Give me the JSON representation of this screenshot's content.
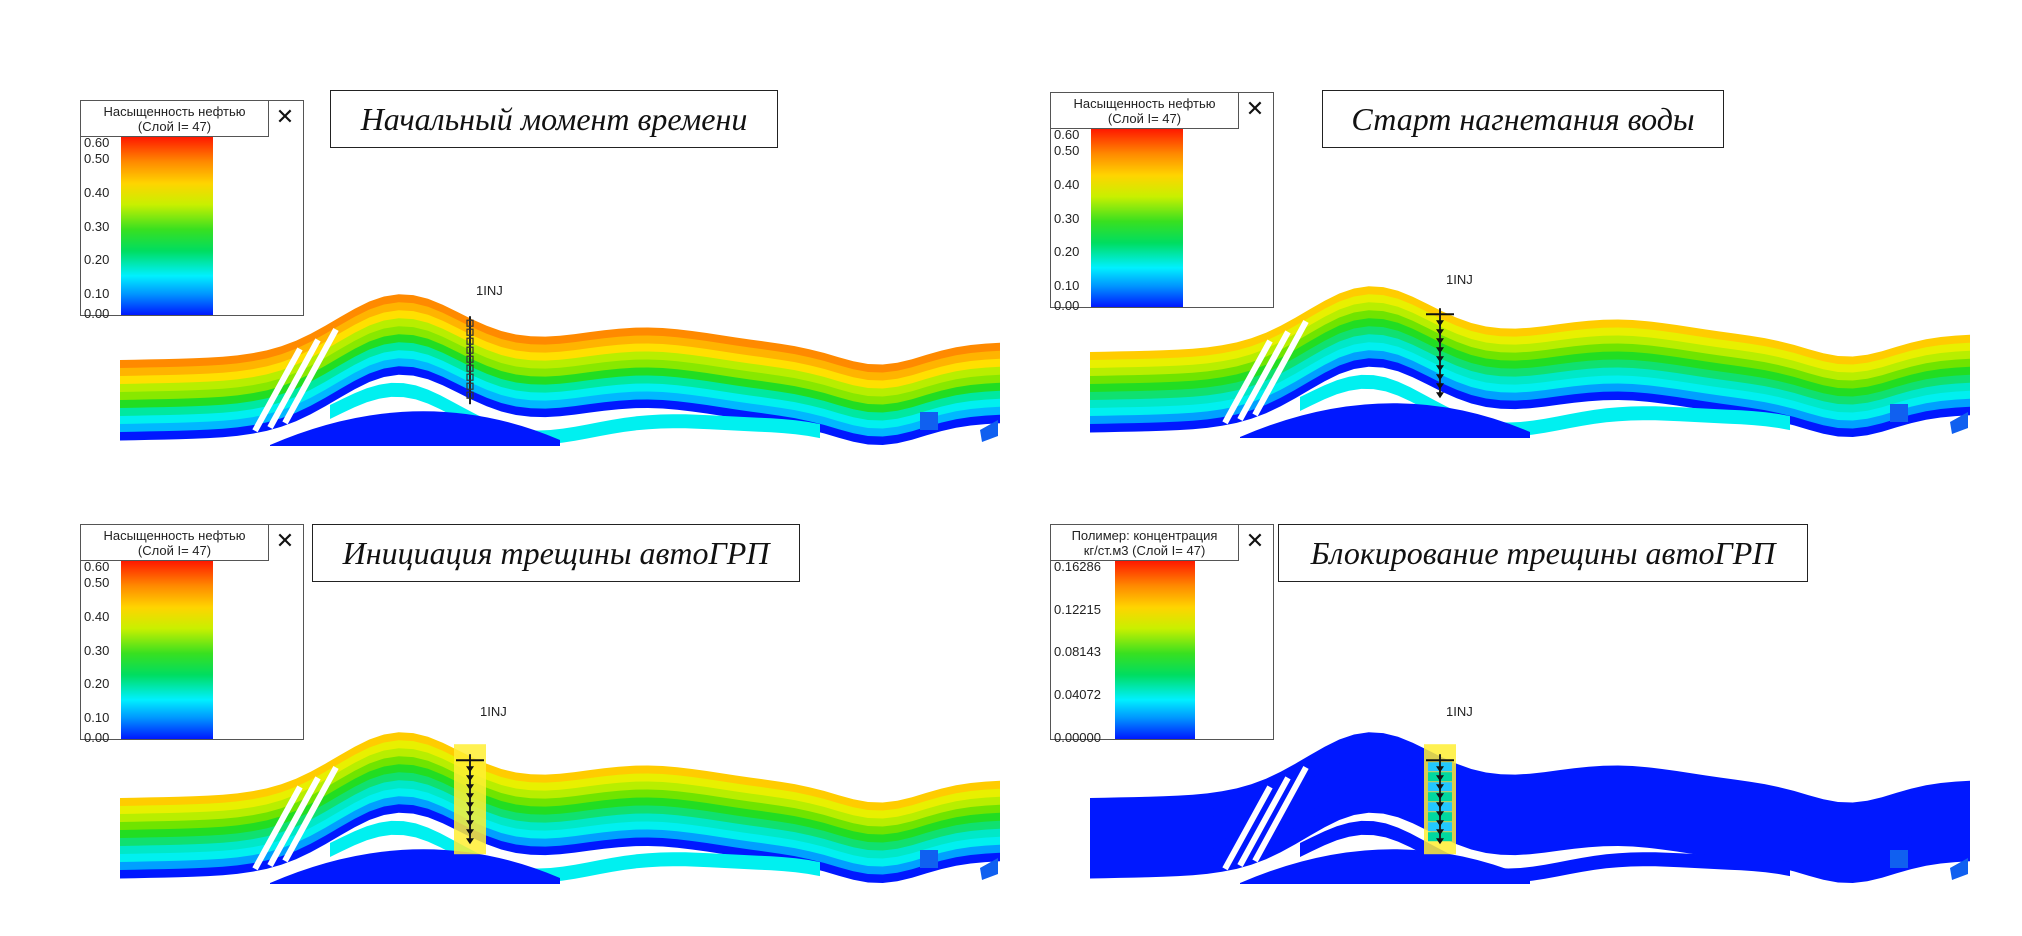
{
  "panels": [
    {
      "id": "p1",
      "caption": "Начальный момент времени",
      "legend": {
        "title": [
          "Насыщенность нефтью",
          "(Слой I= 47)"
        ],
        "ticks": [
          "0.60",
          "0.50",
          "0.40",
          "0.30",
          "0.20",
          "0.10",
          "0.00"
        ]
      },
      "well": "1INJ",
      "state": "initial"
    },
    {
      "id": "p2",
      "caption": "Старт нагнетания воды",
      "legend": {
        "title": [
          "Насыщенность нефтью",
          "(Слой I= 47)"
        ],
        "ticks": [
          "0.60",
          "0.50",
          "0.40",
          "0.30",
          "0.20",
          "0.10",
          "0.00"
        ]
      },
      "well": "1INJ",
      "state": "injection"
    },
    {
      "id": "p3",
      "caption": "Инициация трещины автоГРП",
      "legend": {
        "title": [
          "Насыщенность нефтью",
          "(Слой I= 47)"
        ],
        "ticks": [
          "0.60",
          "0.50",
          "0.40",
          "0.30",
          "0.20",
          "0.10",
          "0.00"
        ]
      },
      "well": "1INJ",
      "state": "fracture"
    },
    {
      "id": "p4",
      "caption": "Блокирование трещины автоГРП",
      "legend": {
        "title": [
          "Полимер: концентрация",
          "кг/ст.м3 (Слой I= 47)"
        ],
        "ticks": [
          "0.16286",
          "0.12215",
          "0.08143",
          "0.04072",
          "0.00000"
        ]
      },
      "well": "1INJ",
      "state": "polymer"
    }
  ],
  "colors": {
    "top": "#ff8a00",
    "mid": "#b8ee00",
    "green": "#22dd22",
    "cyan": "#00f0f0",
    "blue": "#0018ff",
    "fracture": "#ffee33"
  }
}
